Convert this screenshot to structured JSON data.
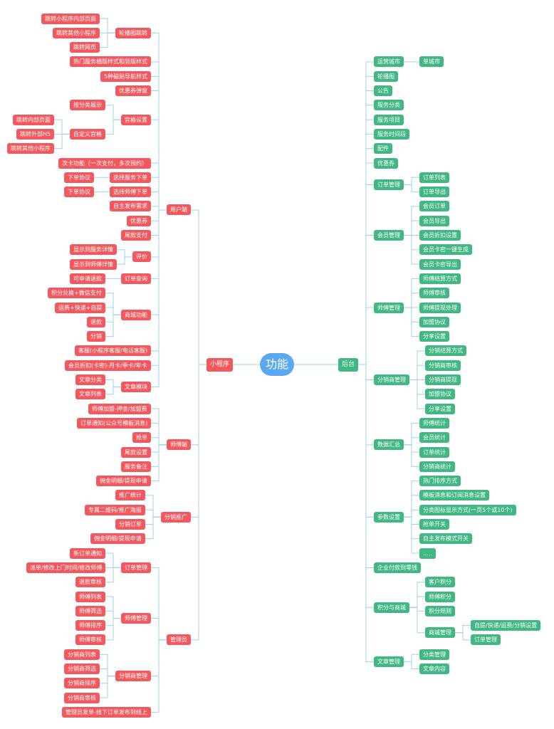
{
  "root": "功能",
  "left": {
    "label": "小程序",
    "children": [
      {
        "label": "用户端",
        "children": [
          {
            "label": "轮播图跳转",
            "children": [
              {
                "label": "跳转小程序内部页面"
              },
              {
                "label": "跳转其他小程序"
              },
              {
                "label": "跳转网页"
              }
            ]
          },
          {
            "label": "热门服务横版样式和竖版样式"
          },
          {
            "label": "5种磁贴导航样式"
          },
          {
            "label": "优惠券弹窗"
          },
          {
            "label": "宫格设置",
            "children": [
              {
                "label": "按分类展示"
              },
              {
                "label": "自定义宫格",
                "children": [
                  {
                    "label": "跳转内部页面"
                  },
                  {
                    "label": "跳转外部H5"
                  },
                  {
                    "label": "跳转其他小程序"
                  }
                ]
              }
            ]
          },
          {
            "label": "次卡功能（一次支付，多次预约）"
          },
          {
            "label": "选择服务下单",
            "children": [
              {
                "label": "下单协议"
              }
            ]
          },
          {
            "label": "选择师傅下单",
            "children": [
              {
                "label": "下单协议"
              }
            ]
          },
          {
            "label": "自主发布需求"
          },
          {
            "label": "优惠券"
          },
          {
            "label": "尾款支付"
          },
          {
            "label": "评价",
            "children": [
              {
                "label": "显示到服务详情"
              },
              {
                "label": "显示到师傅详情"
              }
            ]
          },
          {
            "label": "订单查询",
            "children": [
              {
                "label": "可申请退款"
              }
            ]
          },
          {
            "label": "商城功能",
            "children": [
              {
                "label": "积分兑换+微信支付"
              },
              {
                "label": "运费+快递+自提"
              },
              {
                "label": "退款"
              },
              {
                "label": "分销"
              }
            ]
          },
          {
            "label": "客服(小程序客服/电话客服)"
          },
          {
            "label": "会员折扣(卡密)-月卡/季卡/年卡"
          },
          {
            "label": "文章模块",
            "children": [
              {
                "label": "文章分类"
              },
              {
                "label": "文章列表"
              }
            ]
          }
        ]
      },
      {
        "label": "师傅端",
        "children": [
          {
            "label": "师傅加盟-押金/加盟费"
          },
          {
            "label": "订单通知(公众号模板消息)"
          },
          {
            "label": "抢单"
          },
          {
            "label": "尾款设置"
          },
          {
            "label": "服务备注"
          },
          {
            "label": "佣金明细/提现申请"
          }
        ]
      },
      {
        "label": "分销推广",
        "children": [
          {
            "label": "推广统计"
          },
          {
            "label": "专属二维码/推广海报"
          },
          {
            "label": "分销订单"
          },
          {
            "label": "佣金明细/提现申请"
          }
        ]
      },
      {
        "label": "管理员",
        "children": [
          {
            "label": "订单管理",
            "children": [
              {
                "label": "新订单通知"
              },
              {
                "label": "派单/修改上门时间/修改师傅"
              },
              {
                "label": "退款审核"
              }
            ]
          },
          {
            "label": "师傅管理",
            "children": [
              {
                "label": "师傅列表"
              },
              {
                "label": "师傅筛选"
              },
              {
                "label": "师傅排序"
              },
              {
                "label": "师傅审核"
              }
            ]
          },
          {
            "label": "分销商管理",
            "children": [
              {
                "label": "分销商列表"
              },
              {
                "label": "分销商筛选"
              },
              {
                "label": "分销商排序"
              },
              {
                "label": "分销商审核"
              }
            ]
          },
          {
            "label": "管理员发单-线下订单发布到线上"
          }
        ]
      }
    ]
  },
  "right": {
    "label": "后台",
    "children": [
      {
        "label": "运营城市",
        "children": [
          {
            "label": "单城市"
          }
        ]
      },
      {
        "label": "轮播图"
      },
      {
        "label": "公告"
      },
      {
        "label": "服务分类"
      },
      {
        "label": "服务项目"
      },
      {
        "label": "服务时间段"
      },
      {
        "label": "配件"
      },
      {
        "label": "优惠券"
      },
      {
        "label": "订单管理",
        "children": [
          {
            "label": "订单列表"
          },
          {
            "label": "订单导出"
          }
        ]
      },
      {
        "label": "会员管理",
        "children": [
          {
            "label": "会员订单"
          },
          {
            "label": "会员导出"
          },
          {
            "label": "会员折扣设置"
          },
          {
            "label": "会员卡密一键生成"
          },
          {
            "label": "会员卡密导出"
          }
        ]
      },
      {
        "label": "师傅管理",
        "children": [
          {
            "label": "师傅结算方式"
          },
          {
            "label": "师傅审核"
          },
          {
            "label": "师傅提现处理"
          },
          {
            "label": "加盟协议"
          },
          {
            "label": "分享设置"
          }
        ]
      },
      {
        "label": "分销商管理",
        "children": [
          {
            "label": "分销结算方式"
          },
          {
            "label": "分销商审核"
          },
          {
            "label": "分销商提现"
          },
          {
            "label": "加盟协议"
          },
          {
            "label": "分享设置"
          }
        ]
      },
      {
        "label": "数据汇总",
        "children": [
          {
            "label": "师傅统计"
          },
          {
            "label": "会员统计"
          },
          {
            "label": "订单统计"
          },
          {
            "label": "分销商统计"
          }
        ]
      },
      {
        "label": "参数设置",
        "children": [
          {
            "label": "热门排序方式"
          },
          {
            "label": "模板消息和订阅消息设置"
          },
          {
            "label": "分类图标显示方式(一页5个或10个)"
          },
          {
            "label": "抢单开关"
          },
          {
            "label": "自主发布模式开关"
          },
          {
            "label": "....."
          }
        ]
      },
      {
        "label": "企业付款到零钱"
      },
      {
        "label": "积分与商城",
        "children": [
          {
            "label": "客户积分"
          },
          {
            "label": "师傅积分"
          },
          {
            "label": "积分规则"
          },
          {
            "label": "商城管理",
            "children": [
              {
                "label": "自提/快递/运费/分销设置"
              },
              {
                "label": "订单管理"
              }
            ]
          }
        ]
      },
      {
        "label": "文章管理",
        "children": [
          {
            "label": "分类管理"
          },
          {
            "label": "文章内容"
          }
        ]
      }
    ]
  },
  "colors": {
    "left": "#f2595f",
    "right": "#41b883",
    "root": "#5ba8f0",
    "line": "#9fd0ec"
  }
}
